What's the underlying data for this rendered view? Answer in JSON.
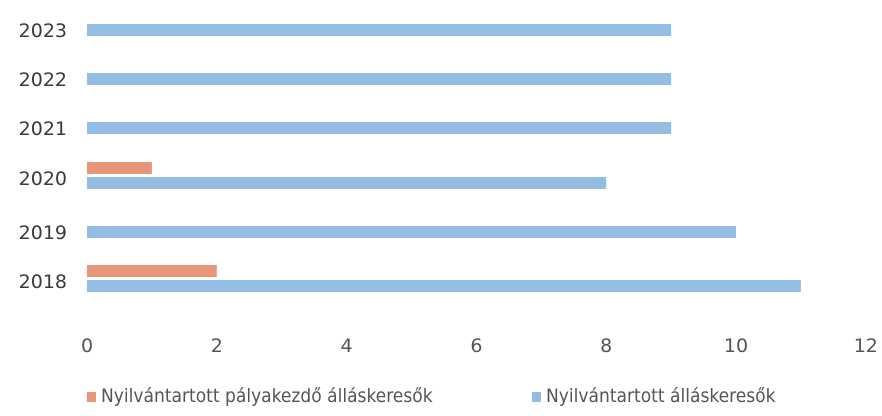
{
  "chart_data": {
    "type": "bar",
    "orientation": "horizontal",
    "title": "",
    "xlabel": "",
    "ylabel": "",
    "categories": [
      "2023",
      "2022",
      "2021",
      "2020",
      "2019",
      "2018"
    ],
    "series": [
      {
        "name": "Nyilvántartott pályakezdő álláskeresők",
        "color": "#e8967a",
        "values": [
          0,
          0,
          0,
          1,
          0,
          2
        ]
      },
      {
        "name": "Nyilvántartott álláskeresők",
        "color": "#93bde3",
        "values": [
          9,
          9,
          9,
          8,
          10,
          11
        ]
      }
    ],
    "xlim": [
      0,
      12
    ],
    "x_ticks": [
      "0",
      "2",
      "4",
      "6",
      "8",
      "10",
      "12"
    ],
    "grid": false,
    "legend": "bottom"
  }
}
